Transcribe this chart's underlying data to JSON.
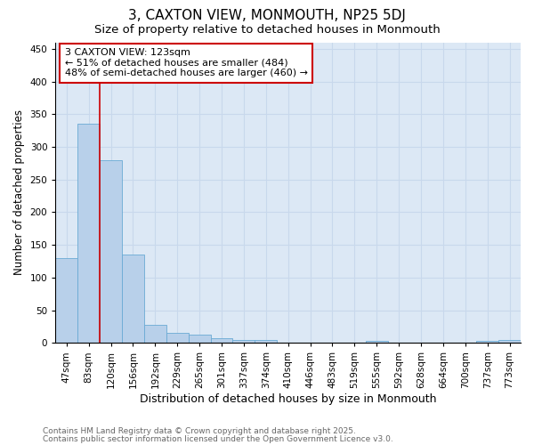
{
  "title": "3, CAXTON VIEW, MONMOUTH, NP25 5DJ",
  "subtitle": "Size of property relative to detached houses in Monmouth",
  "xlabel": "Distribution of detached houses by size in Monmouth",
  "ylabel": "Number of detached properties",
  "categories": [
    "47sqm",
    "83sqm",
    "120sqm",
    "156sqm",
    "192sqm",
    "229sqm",
    "265sqm",
    "301sqm",
    "337sqm",
    "374sqm",
    "410sqm",
    "446sqm",
    "483sqm",
    "519sqm",
    "555sqm",
    "592sqm",
    "628sqm",
    "664sqm",
    "700sqm",
    "737sqm",
    "773sqm"
  ],
  "values": [
    130,
    335,
    280,
    135,
    28,
    16,
    12,
    7,
    5,
    4,
    1,
    1,
    0,
    0,
    3,
    0,
    0,
    0,
    0,
    3,
    4
  ],
  "bar_color": "#b8d0ea",
  "bar_edgecolor": "#6aaad4",
  "vline_x": 1.5,
  "vline_color": "#cc0000",
  "annotation_text": "3 CAXTON VIEW: 123sqm\n← 51% of detached houses are smaller (484)\n48% of semi-detached houses are larger (460) →",
  "annotation_box_edgecolor": "#cc0000",
  "annotation_box_facecolor": "#ffffff",
  "ylim": [
    0,
    460
  ],
  "yticks": [
    0,
    50,
    100,
    150,
    200,
    250,
    300,
    350,
    400,
    450
  ],
  "grid_color": "#c8d8ec",
  "background_color": "#dce8f5",
  "footer_line1": "Contains HM Land Registry data © Crown copyright and database right 2025.",
  "footer_line2": "Contains public sector information licensed under the Open Government Licence v3.0.",
  "title_fontsize": 11,
  "subtitle_fontsize": 9.5,
  "xlabel_fontsize": 9,
  "ylabel_fontsize": 8.5,
  "tick_fontsize": 7.5,
  "annotation_fontsize": 8,
  "footer_fontsize": 6.5
}
